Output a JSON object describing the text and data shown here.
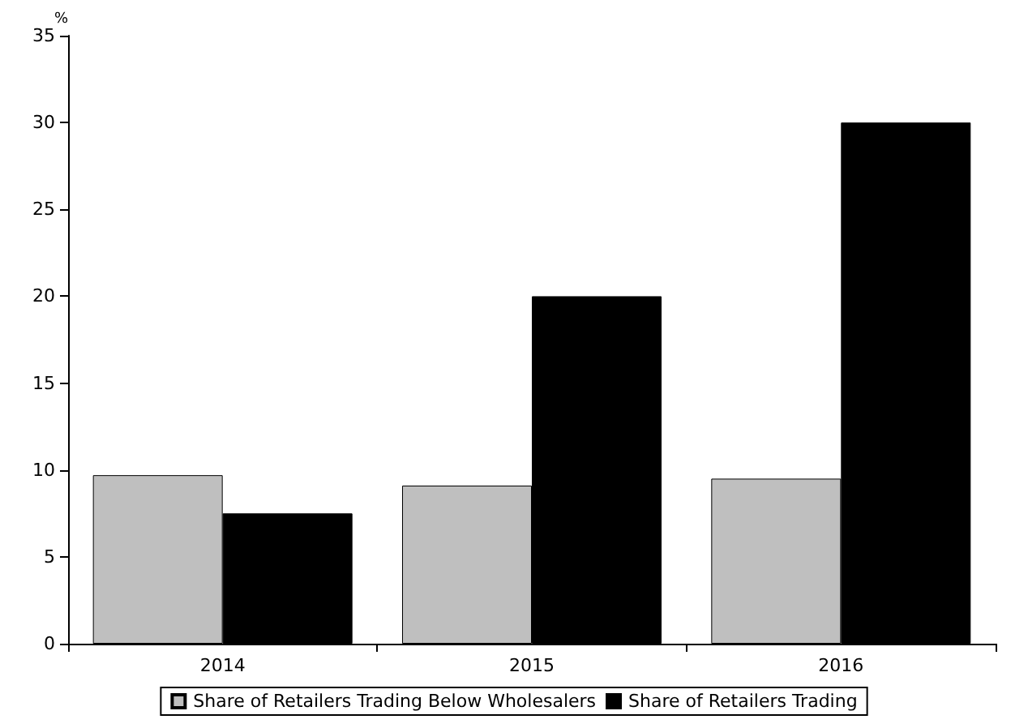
{
  "chart_data": {
    "type": "bar",
    "ylabel": "%",
    "categories": [
      "2014",
      "2015",
      "2016"
    ],
    "series": [
      {
        "name": "Share of Retailers Trading Below Wholesalers",
        "color": "#bfbfbf",
        "values": [
          9.7,
          9.1,
          9.5
        ]
      },
      {
        "name": "Share of Retailers Trading",
        "color": "#000000",
        "values": [
          7.5,
          20,
          30
        ]
      }
    ],
    "ylim": [
      0,
      35
    ],
    "yticks": [
      0,
      5,
      10,
      15,
      20,
      25,
      30,
      35
    ],
    "grid": false,
    "legend": "bottom"
  }
}
